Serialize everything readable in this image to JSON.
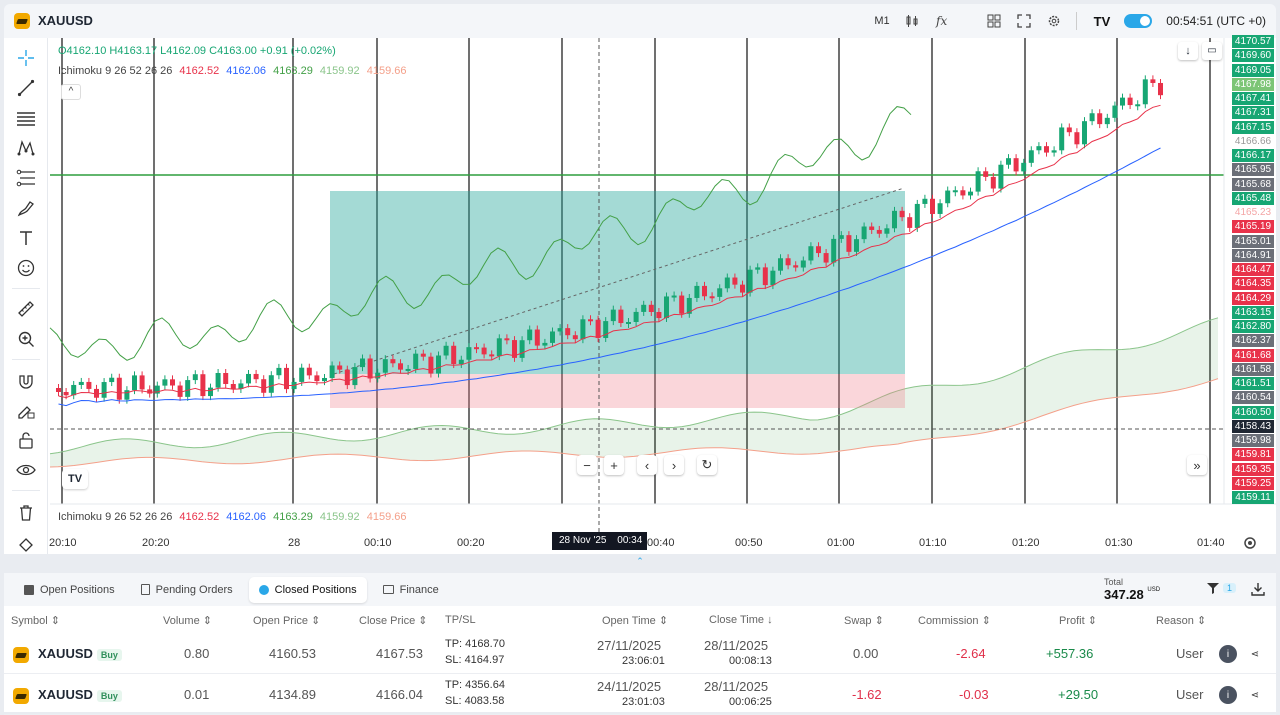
{
  "symbol": {
    "name": "XAUUSD"
  },
  "topbar": {
    "timeframe": "M1",
    "clock": "00:54:51 (UTC +0)"
  },
  "legend": {
    "ohlc": {
      "o": "O4162.10",
      "h": "H4163.17",
      "l": "L4162.09",
      "c": "C4163.00",
      "chg": "+0.91 (+0.02%)"
    },
    "ichimoku": {
      "label": "Ichimoku 9 26 52 26 26",
      "v1": "4162.52",
      "v2": "4162.06",
      "v3": "4163.29",
      "v4": "4159.92",
      "v5": "4159.66"
    }
  },
  "colors": {
    "up": "#17a673",
    "down": "#e8324a",
    "tenkan": "#e8324a",
    "kijun": "#2962ff",
    "chikou": "#43a047",
    "ssa": "#43a047",
    "ssb": "#ef6c4a",
    "target": "#26a69a",
    "stop": "#f4a6b0",
    "accent": "#2aa7e8"
  },
  "price_axis": [
    {
      "p": "4170.57",
      "c": "#17a673"
    },
    {
      "p": "4169.60",
      "c": "#17a673"
    },
    {
      "p": "4169.05",
      "c": "#17a673"
    },
    {
      "p": "4167.98",
      "c": "#7cc576"
    },
    {
      "p": "4167.41",
      "c": "#17a673"
    },
    {
      "p": "4167.31",
      "c": "#17a673"
    },
    {
      "p": "4167.15",
      "c": "#17a673"
    },
    {
      "p": "4166.66",
      "c": "#ffffff",
      "t": "#999999"
    },
    {
      "p": "4166.17",
      "c": "#17a673"
    },
    {
      "p": "4165.95",
      "c": "#6b6f78"
    },
    {
      "p": "4165.68",
      "c": "#6b6f78"
    },
    {
      "p": "4165.48",
      "c": "#17a673"
    },
    {
      "p": "4165.23",
      "c": "#ffffff",
      "t": "#f4a6a6"
    },
    {
      "p": "4165.19",
      "c": "#e8324a"
    },
    {
      "p": "4165.01",
      "c": "#6b6f78"
    },
    {
      "p": "4164.91",
      "c": "#6b6f78"
    },
    {
      "p": "4164.47",
      "c": "#e8324a"
    },
    {
      "p": "4164.35",
      "c": "#e8324a"
    },
    {
      "p": "4164.29",
      "c": "#e8324a"
    },
    {
      "p": "4163.15",
      "c": "#17a673"
    },
    {
      "p": "4162.80",
      "c": "#17a673"
    },
    {
      "p": "4162.37",
      "c": "#6b6f78"
    },
    {
      "p": "4161.68",
      "c": "#e8324a"
    },
    {
      "p": "4161.58",
      "c": "#6b6f78"
    },
    {
      "p": "4161.51",
      "c": "#17a673"
    },
    {
      "p": "4160.54",
      "c": "#6b6f78"
    },
    {
      "p": "4160.50",
      "c": "#17a673"
    },
    {
      "p": "4158.43",
      "c": "#1f2733"
    },
    {
      "p": "4159.98",
      "c": "#6b6f78"
    },
    {
      "p": "4159.81",
      "c": "#e8324a"
    },
    {
      "p": "4159.35",
      "c": "#e8324a"
    },
    {
      "p": "4159.25",
      "c": "#e8324a"
    },
    {
      "p": "4159.11",
      "c": "#17a673"
    }
  ],
  "time_axis": [
    "20:10",
    "20:20",
    "28",
    "00:10",
    "00:20",
    "00:40",
    "00:50",
    "01:00",
    "01:10",
    "01:20",
    "01:30",
    "01:40"
  ],
  "crosshair_label": {
    "date": "28 Nov '25",
    "time": "00:34"
  },
  "panel": {
    "tabs": [
      "Open Positions",
      "Pending Orders",
      "Closed Positions",
      "Finance"
    ],
    "total_label": "Total",
    "total_value": "347.28",
    "total_unit": "USD",
    "filter_count": "1",
    "columns": [
      "Symbol",
      "Volume",
      "Open Price",
      "Close Price",
      "TP/SL",
      "Open Time",
      "Close Time",
      "Swap",
      "Commission",
      "Profit",
      "Reason"
    ],
    "rows": [
      {
        "symbol": "XAUUSD",
        "side": "Buy",
        "volume": "0.80",
        "open_price": "4160.53",
        "close_price": "4167.53",
        "tp": "TP: 4168.70",
        "sl": "SL: 4164.97",
        "open_date": "27/11/2025",
        "open_time": "23:06:01",
        "close_date": "28/11/2025",
        "close_time": "00:08:13",
        "swap": "0.00",
        "commission": "-2.64",
        "profit": "+557.36",
        "reason": "User"
      },
      {
        "symbol": "XAUUSD",
        "side": "Buy",
        "volume": "0.01",
        "open_price": "4134.89",
        "close_price": "4166.04",
        "tp": "TP: 4356.64",
        "sl": "SL: 4083.58",
        "open_date": "24/11/2025",
        "open_time": "23:01:03",
        "close_date": "28/11/2025",
        "close_time": "00:06:25",
        "swap": "-1.62",
        "commission": "-0.03",
        "profit": "+29.50",
        "reason": "User"
      }
    ]
  }
}
